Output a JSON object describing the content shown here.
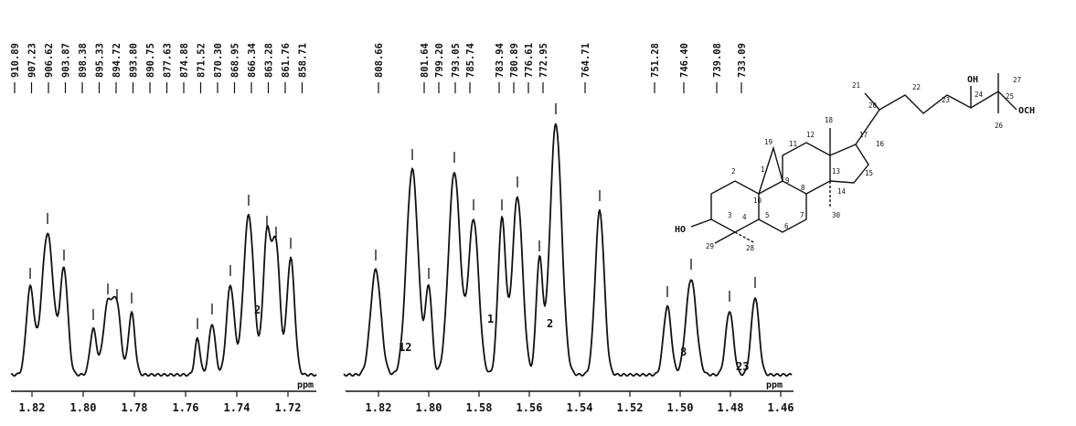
{
  "chart_data": [
    {
      "type": "line",
      "xlabel": "ppm",
      "xlim": [
        1.826,
        1.71
      ],
      "tick_labels": [
        "1.82",
        "1.80",
        "1.78",
        "1.76",
        "1.74",
        "1.72"
      ],
      "peak_labels": [
        "910.89",
        "907.23",
        "906.62",
        "903.87",
        "898.38",
        "895.33",
        "894.72",
        "893.80",
        "890.75",
        "877.63",
        "874.88",
        "871.52",
        "870.30",
        "868.95",
        "866.34",
        "863.28",
        "861.76",
        "858.71"
      ],
      "integrals": [
        "2"
      ]
    },
    {
      "type": "line",
      "xlabel": "ppm",
      "xlim": [
        1.83,
        1.455
      ],
      "tick_labels": [
        "1.82",
        "1.80",
        "1.58",
        "1.56",
        "1.54",
        "1.52",
        "1.50",
        "1.48",
        "1.46"
      ],
      "peak_labels": [
        "808.66",
        "801.64",
        "799.20",
        "793.05",
        "785.74",
        "783.94",
        "780.89",
        "776.61",
        "772.95",
        "764.71",
        "751.28",
        "746.40",
        "739.08",
        "733.09"
      ],
      "integrals": [
        "12",
        "1",
        "2",
        "8",
        "23"
      ]
    }
  ],
  "structure": {
    "substituents": [
      "OH",
      "OCH",
      "HO"
    ],
    "carbon_numbers": [
      "1",
      "2",
      "3",
      "4",
      "5",
      "6",
      "7",
      "8",
      "9",
      "10",
      "11",
      "12",
      "13",
      "14",
      "15",
      "16",
      "17",
      "18",
      "19",
      "20",
      "21",
      "22",
      "23",
      "24",
      "25",
      "26",
      "27",
      "28",
      "29",
      "30"
    ]
  }
}
